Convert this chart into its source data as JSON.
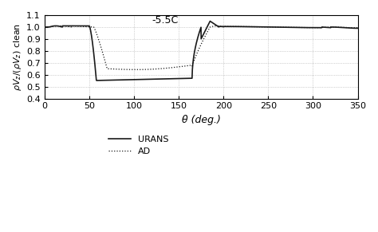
{
  "title_annotation": "-5.5C",
  "xlabel": "θ (deg.)",
  "xlim": [
    0,
    350
  ],
  "ylim": [
    0.4,
    1.1
  ],
  "xticks": [
    0,
    50,
    100,
    150,
    200,
    250,
    300,
    350
  ],
  "yticks": [
    0.4,
    0.5,
    0.6,
    0.7,
    0.8,
    0.9,
    1.0,
    1.1
  ],
  "legend_labels": [
    "URANS",
    "AD"
  ],
  "line_color": "#1a1a1a",
  "background_color": "#ffffff",
  "grid_color": "#aaaaaa"
}
